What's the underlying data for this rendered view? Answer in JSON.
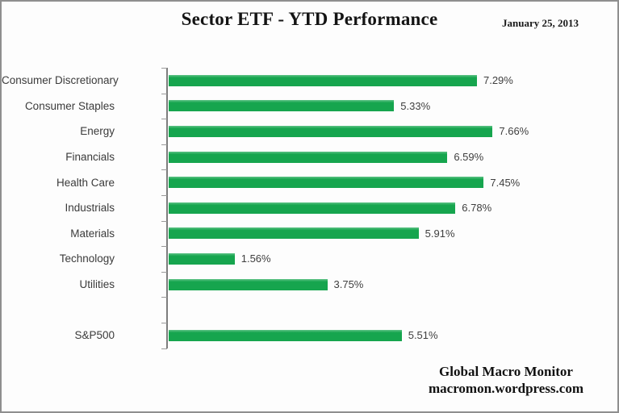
{
  "header": {
    "title": "Sector ETF - YTD Performance",
    "date": "January 25, 2013"
  },
  "footer": {
    "line1": "Global Macro Monitor",
    "line2": "macromon.wordpress.com"
  },
  "chart_data": {
    "type": "bar",
    "orientation": "horizontal",
    "title": "Sector ETF - YTD Performance",
    "xlabel": "",
    "ylabel": "",
    "xlim": [
      0,
      9
    ],
    "grid": false,
    "legend": "none",
    "value_suffix": "%",
    "bar_color": "#16a54e",
    "bar_highlight_color": "#5fc387",
    "axis_color": "#7d7d7d",
    "categories": [
      "Consumer Discretionary",
      "Consumer Staples",
      "Energy",
      "Financials",
      "Health Care",
      "Industrials",
      "Materials",
      "Technology",
      "Utilities",
      "",
      "S&P500"
    ],
    "values": [
      7.29,
      5.33,
      7.66,
      6.59,
      7.45,
      6.78,
      5.91,
      1.56,
      3.75,
      null,
      5.51
    ],
    "value_labels": [
      "7.29%",
      "5.33%",
      "7.66%",
      "6.59%",
      "7.45%",
      "6.78%",
      "5.91%",
      "1.56%",
      "3.75%",
      "",
      "5.51%"
    ]
  }
}
